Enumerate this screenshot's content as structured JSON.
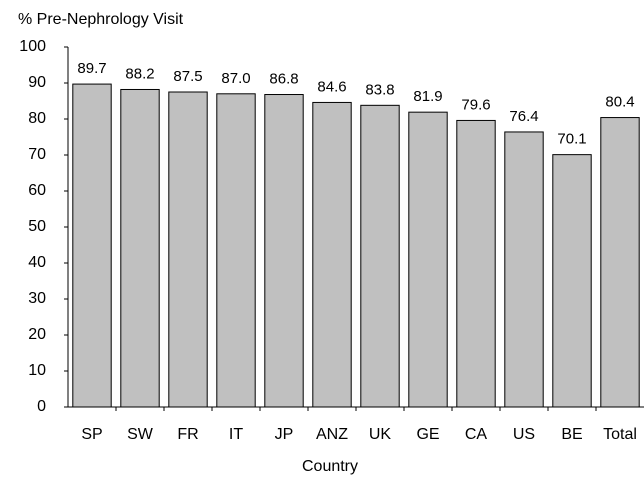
{
  "chart_data": {
    "type": "bar",
    "y_label": "% Pre-Nephrology Visit",
    "x_label": "Country",
    "categories": [
      "SP",
      "SW",
      "FR",
      "IT",
      "JP",
      "ANZ",
      "UK",
      "GE",
      "CA",
      "US",
      "BE",
      "Total"
    ],
    "values": [
      89.7,
      88.2,
      87.5,
      87,
      86.8,
      84.6,
      83.8,
      81.9,
      79.6,
      76.4,
      70.1,
      80.4
    ],
    "value_labels": [
      "89.7",
      "88.2",
      "87.5",
      "87.0",
      "86.8",
      "84.6",
      "83.8",
      "81.9",
      "79.6",
      "76.4",
      "70.1",
      "80.4"
    ],
    "color": "#c0c0c0",
    "ylim": [
      0,
      100
    ],
    "yticks": [
      0,
      10,
      20,
      30,
      40,
      50,
      60,
      70,
      80,
      90,
      100
    ],
    "grid": false
  }
}
